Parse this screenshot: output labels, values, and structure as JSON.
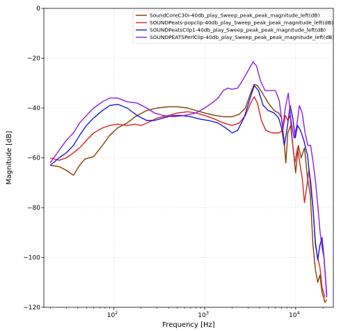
{
  "chart_data": {
    "type": "line",
    "xlabel": "Frequency [Hz]",
    "ylabel": "Magnitude [dB]",
    "xscale": "log",
    "xlim": [
      17,
      26000
    ],
    "ylim": [
      -120,
      0
    ],
    "x_ticks": [
      {
        "value": 100,
        "base": "10",
        "exp": "2"
      },
      {
        "value": 1000,
        "base": "10",
        "exp": "3"
      },
      {
        "value": 10000,
        "base": "10",
        "exp": "4"
      }
    ],
    "y_ticks": [
      {
        "value": 0,
        "label": "0"
      },
      {
        "value": -20,
        "label": "−20"
      },
      {
        "value": -40,
        "label": "−40"
      },
      {
        "value": -60,
        "label": "−60"
      },
      {
        "value": -80,
        "label": "−80"
      },
      {
        "value": -100,
        "label": "−100"
      },
      {
        "value": -120,
        "label": "−120"
      }
    ],
    "grid": true,
    "legend_position": "top-right",
    "series": [
      {
        "name": "SoundCoreC30i-40db_play_Sweep_peak_peak_magnitude_left(dB)",
        "color": "#7f3f00",
        "points": [
          [
            20,
            -63
          ],
          [
            25,
            -63.5
          ],
          [
            30,
            -65
          ],
          [
            36,
            -67
          ],
          [
            42,
            -63
          ],
          [
            48,
            -60.5
          ],
          [
            60,
            -59.5
          ],
          [
            75,
            -55
          ],
          [
            90,
            -51
          ],
          [
            110,
            -48
          ],
          [
            140,
            -46
          ],
          [
            180,
            -43
          ],
          [
            230,
            -41
          ],
          [
            300,
            -40
          ],
          [
            400,
            -39.5
          ],
          [
            500,
            -39.5
          ],
          [
            650,
            -40
          ],
          [
            800,
            -41
          ],
          [
            1000,
            -42
          ],
          [
            1300,
            -43
          ],
          [
            1600,
            -43.5
          ],
          [
            2000,
            -43.5
          ],
          [
            2400,
            -42.5
          ],
          [
            2800,
            -40
          ],
          [
            3200,
            -34
          ],
          [
            3500,
            -30.5
          ],
          [
            3800,
            -31
          ],
          [
            4300,
            -34
          ],
          [
            5000,
            -38
          ],
          [
            5800,
            -41
          ],
          [
            6500,
            -42
          ],
          [
            7000,
            -44
          ],
          [
            7400,
            -52
          ],
          [
            7800,
            -62
          ],
          [
            8200,
            -50
          ],
          [
            8800,
            -47
          ],
          [
            9500,
            -58
          ],
          [
            10000,
            -66
          ],
          [
            10700,
            -55
          ],
          [
            11500,
            -60
          ],
          [
            12500,
            -56
          ],
          [
            13500,
            -68
          ],
          [
            14500,
            -75
          ],
          [
            15500,
            -95
          ],
          [
            16500,
            -105
          ],
          [
            17500,
            -110
          ],
          [
            18500,
            -107
          ],
          [
            19500,
            -114
          ],
          [
            21000,
            -118
          ],
          [
            22000,
            -117
          ]
        ]
      },
      {
        "name": "SOUNDPeats-popclip-40db_play_Sweep_peak_peak_magnitude_left(dB)",
        "color": "#dd1f1f",
        "points": [
          [
            20,
            -60
          ],
          [
            25,
            -61
          ],
          [
            30,
            -60
          ],
          [
            36,
            -58
          ],
          [
            42,
            -56
          ],
          [
            50,
            -53
          ],
          [
            60,
            -50
          ],
          [
            75,
            -48
          ],
          [
            90,
            -47
          ],
          [
            110,
            -46.5
          ],
          [
            140,
            -47
          ],
          [
            170,
            -46.5
          ],
          [
            200,
            -47
          ],
          [
            250,
            -45.5
          ],
          [
            300,
            -44
          ],
          [
            400,
            -43
          ],
          [
            500,
            -42
          ],
          [
            650,
            -41.5
          ],
          [
            800,
            -42
          ],
          [
            1000,
            -43
          ],
          [
            1300,
            -44.5
          ],
          [
            1600,
            -46
          ],
          [
            2000,
            -47
          ],
          [
            2400,
            -46
          ],
          [
            2800,
            -43
          ],
          [
            3200,
            -38
          ],
          [
            3500,
            -35.5
          ],
          [
            3800,
            -38
          ],
          [
            4200,
            -45
          ],
          [
            4700,
            -49
          ],
          [
            5500,
            -50
          ],
          [
            6500,
            -50
          ],
          [
            7200,
            -49
          ],
          [
            7700,
            -43
          ],
          [
            8200,
            -45
          ],
          [
            8700,
            -43
          ],
          [
            9300,
            -55
          ],
          [
            9800,
            -62
          ],
          [
            10500,
            -56
          ],
          [
            11200,
            -63
          ],
          [
            11800,
            -68
          ],
          [
            12500,
            -78
          ],
          [
            13200,
            -72
          ],
          [
            14000,
            -65
          ],
          [
            14700,
            -70
          ],
          [
            15500,
            -80
          ],
          [
            16500,
            -95
          ],
          [
            17500,
            -100
          ],
          [
            18500,
            -104
          ],
          [
            19500,
            -112
          ],
          [
            21000,
            -116
          ]
        ]
      },
      {
        "name": "SOUNDPeatsClip1-40db_play_Sweep_peak_peak_magnitude_left(dB)",
        "color": "#1616dd",
        "points": [
          [
            20,
            -63
          ],
          [
            25,
            -60
          ],
          [
            30,
            -58
          ],
          [
            36,
            -55
          ],
          [
            42,
            -51
          ],
          [
            50,
            -47
          ],
          [
            60,
            -44
          ],
          [
            75,
            -41
          ],
          [
            90,
            -39
          ],
          [
            110,
            -38.5
          ],
          [
            140,
            -40
          ],
          [
            180,
            -43
          ],
          [
            230,
            -45
          ],
          [
            280,
            -45
          ],
          [
            350,
            -44
          ],
          [
            450,
            -43
          ],
          [
            550,
            -43
          ],
          [
            700,
            -43.5
          ],
          [
            900,
            -44.5
          ],
          [
            1100,
            -45
          ],
          [
            1400,
            -46
          ],
          [
            1700,
            -48
          ],
          [
            2000,
            -50
          ],
          [
            2300,
            -49
          ],
          [
            2700,
            -44
          ],
          [
            3100,
            -37
          ],
          [
            3500,
            -31
          ],
          [
            3900,
            -33
          ],
          [
            4400,
            -39
          ],
          [
            5000,
            -41
          ],
          [
            5800,
            -42
          ],
          [
            6500,
            -44
          ],
          [
            7000,
            -48
          ],
          [
            7500,
            -55
          ],
          [
            8000,
            -49
          ],
          [
            8700,
            -39
          ],
          [
            9300,
            -44
          ],
          [
            9900,
            -52
          ],
          [
            10500,
            -47
          ],
          [
            11300,
            -49
          ],
          [
            12300,
            -53
          ],
          [
            13500,
            -59
          ],
          [
            14500,
            -70
          ],
          [
            15500,
            -80
          ],
          [
            16500,
            -94
          ],
          [
            17500,
            -101
          ],
          [
            18500,
            -95
          ],
          [
            19500,
            -92
          ],
          [
            20500,
            -100
          ],
          [
            22000,
            -115
          ]
        ]
      },
      {
        "name": "SOUNDPEATSPerlClip-40db_play_Sweep_peak_peak_magnitude_left(dB)",
        "color": "#8e1cdc",
        "points": [
          [
            20,
            -62
          ],
          [
            25,
            -57
          ],
          [
            30,
            -53
          ],
          [
            36,
            -50
          ],
          [
            42,
            -46
          ],
          [
            50,
            -43
          ],
          [
            60,
            -40
          ],
          [
            75,
            -37.5
          ],
          [
            90,
            -36
          ],
          [
            110,
            -36
          ],
          [
            140,
            -37.5
          ],
          [
            180,
            -38
          ],
          [
            230,
            -40
          ],
          [
            280,
            -42
          ],
          [
            350,
            -43
          ],
          [
            450,
            -43.5
          ],
          [
            600,
            -43
          ],
          [
            800,
            -42
          ],
          [
            1000,
            -40
          ],
          [
            1200,
            -38
          ],
          [
            1400,
            -36
          ],
          [
            1600,
            -33
          ],
          [
            1800,
            -32
          ],
          [
            2000,
            -32.5
          ],
          [
            2300,
            -32
          ],
          [
            2600,
            -29
          ],
          [
            3000,
            -25
          ],
          [
            3400,
            -21.5
          ],
          [
            3700,
            -23
          ],
          [
            4100,
            -29
          ],
          [
            4600,
            -33
          ],
          [
            5300,
            -33
          ],
          [
            6000,
            -33
          ],
          [
            6600,
            -37
          ],
          [
            7200,
            -48
          ],
          [
            7700,
            -40
          ],
          [
            8300,
            -34
          ],
          [
            8900,
            -45
          ],
          [
            9600,
            -52
          ],
          [
            10300,
            -47
          ],
          [
            11000,
            -39
          ],
          [
            11800,
            -42
          ],
          [
            12700,
            -50
          ],
          [
            13600,
            -55
          ],
          [
            14600,
            -55
          ],
          [
            15600,
            -62
          ],
          [
            16600,
            -70
          ],
          [
            17600,
            -80
          ],
          [
            18600,
            -90
          ],
          [
            19500,
            -96
          ],
          [
            20500,
            -100
          ],
          [
            22000,
            -116
          ]
        ]
      }
    ]
  }
}
